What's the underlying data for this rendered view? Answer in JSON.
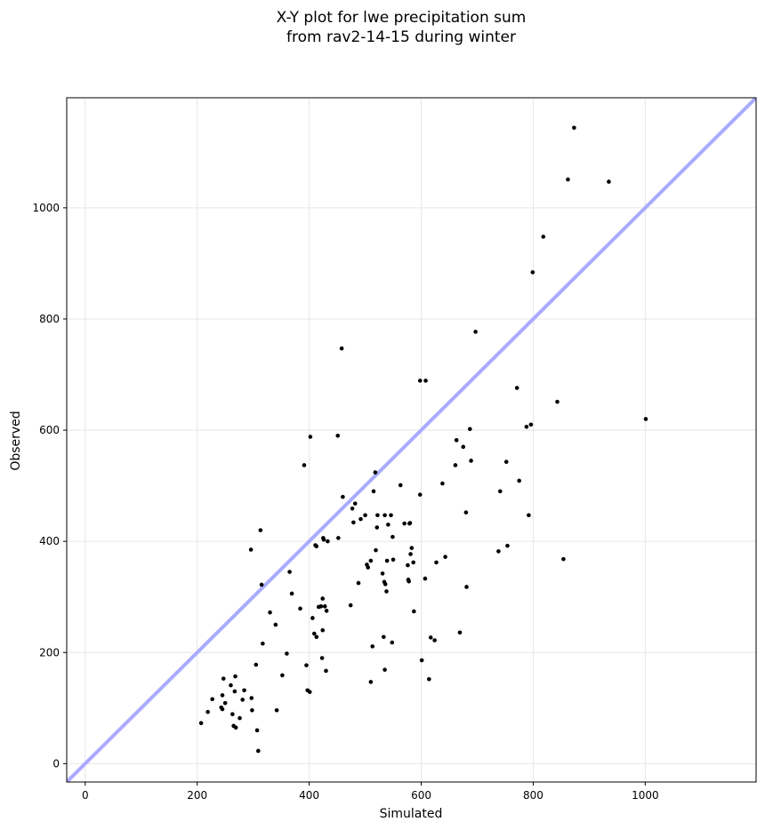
{
  "chart_data": {
    "type": "scatter",
    "title_lines": [
      "X-Y plot for lwe precipitation sum",
      "from rav2-14-15 during winter"
    ],
    "xlabel": "Simulated",
    "ylabel": "Observed",
    "xlim": [
      -33,
      1198
    ],
    "ylim": [
      -33,
      1198
    ],
    "xticks": [
      0,
      200,
      400,
      600,
      800,
      1000
    ],
    "yticks": [
      0,
      200,
      400,
      600,
      800,
      1000
    ],
    "grid": true,
    "reference_line": {
      "kind": "identity",
      "color": "#aaaaff"
    },
    "point_color": "#000000",
    "points": [
      [
        207,
        73
      ],
      [
        219,
        93
      ],
      [
        227,
        116
      ],
      [
        243,
        101
      ],
      [
        245,
        98
      ],
      [
        247,
        153
      ],
      [
        245,
        123
      ],
      [
        250,
        109
      ],
      [
        260,
        141
      ],
      [
        263,
        89
      ],
      [
        265,
        68
      ],
      [
        267,
        130
      ],
      [
        268,
        157
      ],
      [
        269,
        65
      ],
      [
        276,
        82
      ],
      [
        281,
        115
      ],
      [
        284,
        132
      ],
      [
        296,
        385
      ],
      [
        297,
        118
      ],
      [
        298,
        96
      ],
      [
        305,
        178
      ],
      [
        307,
        60
      ],
      [
        309,
        23
      ],
      [
        313,
        420
      ],
      [
        315,
        322
      ],
      [
        317,
        216
      ],
      [
        330,
        272
      ],
      [
        340,
        250
      ],
      [
        342,
        96
      ],
      [
        352,
        159
      ],
      [
        360,
        198
      ],
      [
        365,
        345
      ],
      [
        369,
        306
      ],
      [
        384,
        279
      ],
      [
        391,
        537
      ],
      [
        395,
        177
      ],
      [
        397,
        132
      ],
      [
        401,
        129
      ],
      [
        402,
        588
      ],
      [
        406,
        262
      ],
      [
        409,
        234
      ],
      [
        411,
        393
      ],
      [
        413,
        391
      ],
      [
        413,
        228
      ],
      [
        417,
        282
      ],
      [
        421,
        283
      ],
      [
        423,
        190
      ],
      [
        424,
        297
      ],
      [
        424,
        240
      ],
      [
        425,
        406
      ],
      [
        426,
        403
      ],
      [
        428,
        283
      ],
      [
        430,
        167
      ],
      [
        431,
        275
      ],
      [
        433,
        400
      ],
      [
        451,
        590
      ],
      [
        452,
        406
      ],
      [
        458,
        747
      ],
      [
        460,
        480
      ],
      [
        474,
        285
      ],
      [
        477,
        459
      ],
      [
        479,
        434
      ],
      [
        482,
        468
      ],
      [
        488,
        325
      ],
      [
        492,
        440
      ],
      [
        500,
        447
      ],
      [
        503,
        358
      ],
      [
        505,
        353
      ],
      [
        510,
        365
      ],
      [
        510,
        147
      ],
      [
        513,
        211
      ],
      [
        515,
        490
      ],
      [
        518,
        524
      ],
      [
        519,
        384
      ],
      [
        521,
        425
      ],
      [
        522,
        447
      ],
      [
        531,
        342
      ],
      [
        533,
        228
      ],
      [
        534,
        327
      ],
      [
        535,
        447
      ],
      [
        535,
        169
      ],
      [
        536,
        323
      ],
      [
        538,
        310
      ],
      [
        539,
        365
      ],
      [
        541,
        430
      ],
      [
        546,
        447
      ],
      [
        548,
        218
      ],
      [
        549,
        408
      ],
      [
        550,
        367
      ],
      [
        563,
        501
      ],
      [
        570,
        432
      ],
      [
        576,
        357
      ],
      [
        577,
        331
      ],
      [
        578,
        328
      ],
      [
        579,
        432
      ],
      [
        580,
        433
      ],
      [
        581,
        377
      ],
      [
        583,
        388
      ],
      [
        586,
        362
      ],
      [
        587,
        274
      ],
      [
        598,
        689
      ],
      [
        598,
        484
      ],
      [
        601,
        186
      ],
      [
        607,
        333
      ],
      [
        608,
        689
      ],
      [
        614,
        152
      ],
      [
        617,
        227
      ],
      [
        624,
        222
      ],
      [
        627,
        362
      ],
      [
        638,
        504
      ],
      [
        643,
        372
      ],
      [
        661,
        537
      ],
      [
        663,
        582
      ],
      [
        669,
        236
      ],
      [
        675,
        570
      ],
      [
        680,
        452
      ],
      [
        681,
        318
      ],
      [
        687,
        602
      ],
      [
        689,
        545
      ],
      [
        738,
        382
      ],
      [
        741,
        490
      ],
      [
        752,
        543
      ],
      [
        754,
        392
      ],
      [
        771,
        676
      ],
      [
        775,
        509
      ],
      [
        788,
        606
      ],
      [
        792,
        447
      ],
      [
        796,
        610
      ],
      [
        799,
        884
      ],
      [
        818,
        948
      ],
      [
        843,
        651
      ],
      [
        854,
        368
      ],
      [
        862,
        1051
      ],
      [
        873,
        1144
      ],
      [
        697,
        777
      ],
      [
        935,
        1047
      ],
      [
        1001,
        620
      ]
    ]
  }
}
